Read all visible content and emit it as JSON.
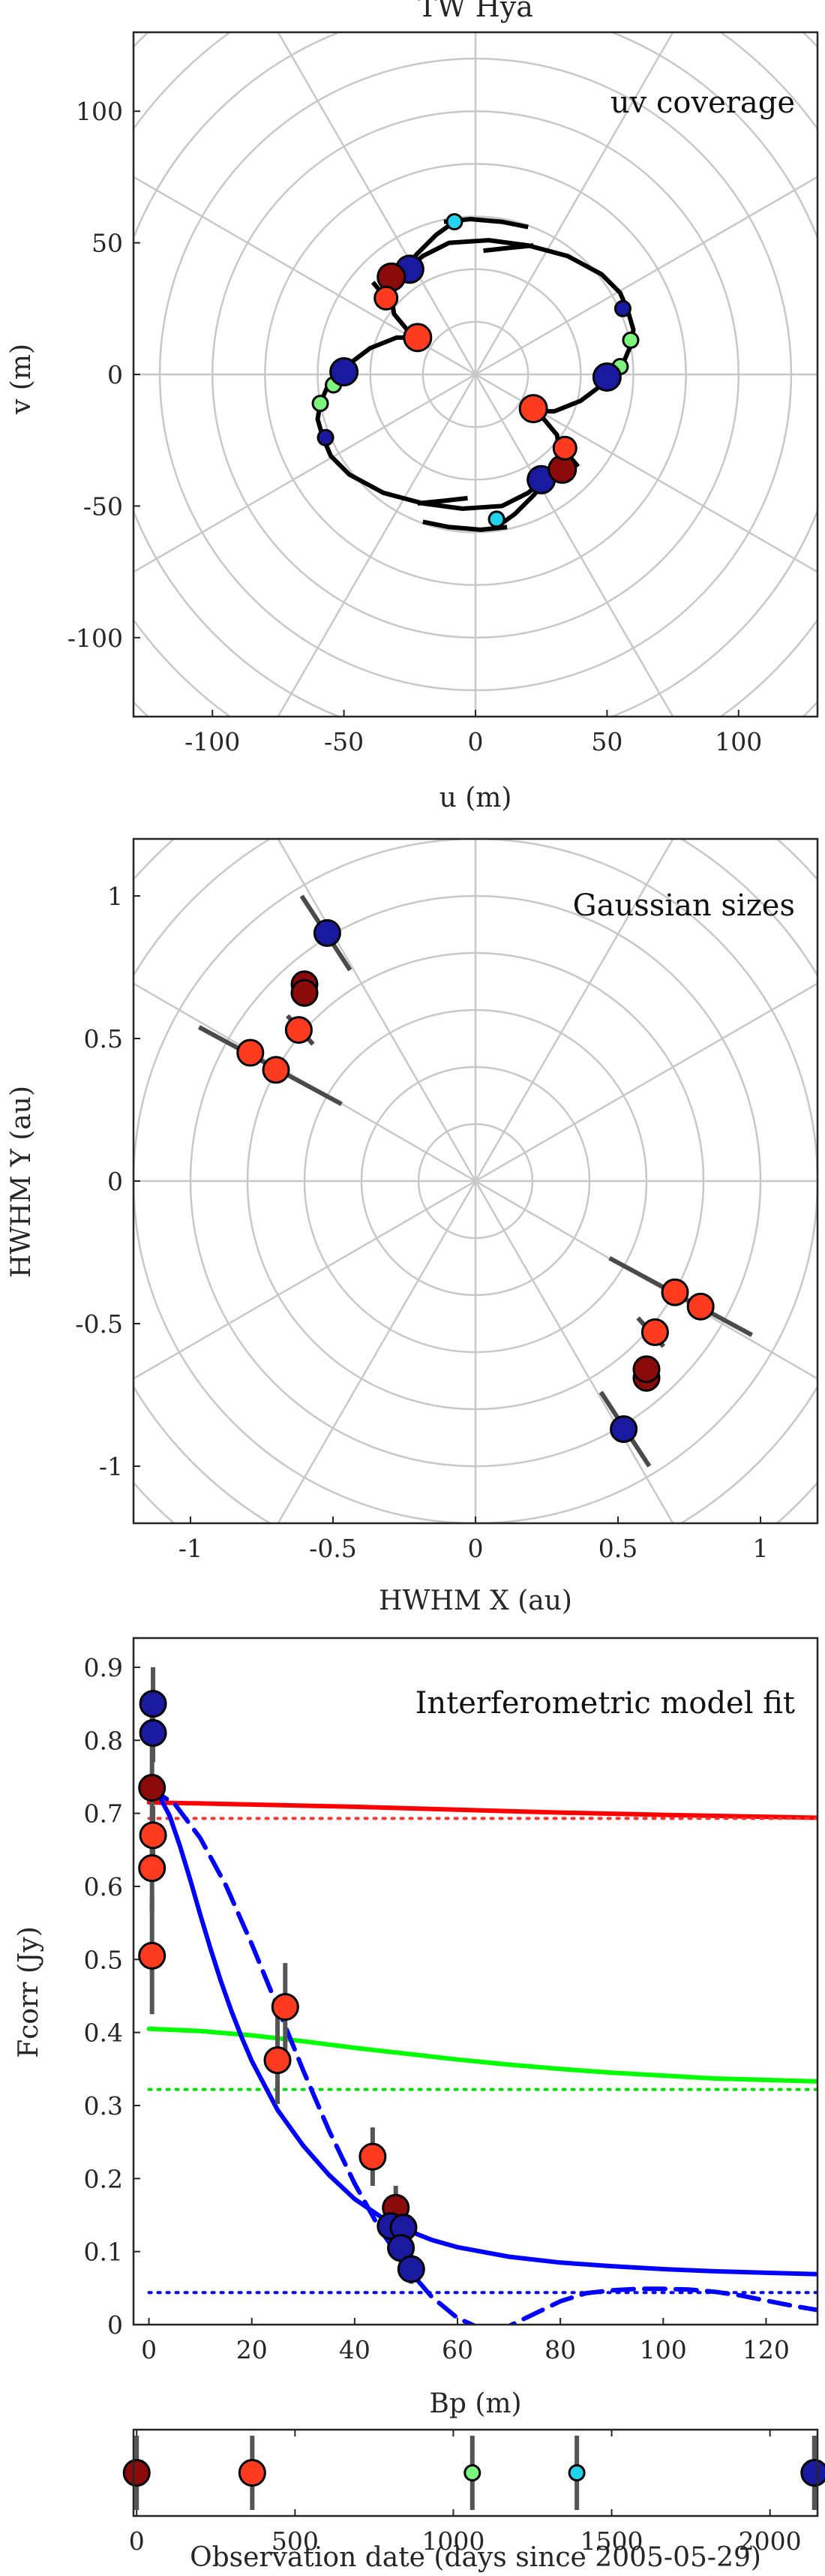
{
  "chart_data": [
    {
      "type": "scatter",
      "title": "TW Hya",
      "annotation": "uv coverage",
      "xlabel": "u (m)",
      "ylabel": "v (m)",
      "xlim": [
        -130,
        130
      ],
      "ylim": [
        -130,
        130
      ],
      "xticks": [
        "-100",
        "-50",
        "0",
        "50",
        "100"
      ],
      "yticks": [
        "-100",
        "-50",
        "0",
        "50",
        "100"
      ],
      "grid": "polar",
      "points": [
        {
          "u": -8,
          "v": 58,
          "color": "#22d3ee",
          "size": "small"
        },
        {
          "u": 8,
          "v": -55,
          "color": "#22d3ee",
          "size": "small"
        },
        {
          "u": -25,
          "v": 40,
          "color": "#1a1aa0",
          "size": "large"
        },
        {
          "u": 25,
          "v": -40,
          "color": "#1a1aa0",
          "size": "large"
        },
        {
          "u": -32,
          "v": 37,
          "color": "#8b0a0a",
          "size": "large"
        },
        {
          "u": 33,
          "v": -36,
          "color": "#8b0a0a",
          "size": "large"
        },
        {
          "u": -34,
          "v": 29,
          "color": "#ff3b1f",
          "size": "medium"
        },
        {
          "u": 34,
          "v": -28,
          "color": "#ff3b1f",
          "size": "medium"
        },
        {
          "u": -22,
          "v": 14,
          "color": "#ff3b1f",
          "size": "large"
        },
        {
          "u": 22,
          "v": -13,
          "color": "#ff3b1f",
          "size": "large"
        },
        {
          "u": 56,
          "v": 25,
          "color": "#1a1aa0",
          "size": "small"
        },
        {
          "u": -57,
          "v": -24,
          "color": "#1a1aa0",
          "size": "small"
        },
        {
          "u": 59,
          "v": 13,
          "color": "#7cf57c",
          "size": "small"
        },
        {
          "u": -59,
          "v": -11,
          "color": "#7cf57c",
          "size": "small"
        },
        {
          "u": 55,
          "v": 3,
          "color": "#7cf57c",
          "size": "small"
        },
        {
          "u": -54,
          "v": -4,
          "color": "#7cf57c",
          "size": "small"
        },
        {
          "u": 50,
          "v": -1,
          "color": "#1a1aa0",
          "size": "large"
        },
        {
          "u": -50,
          "v": 1,
          "color": "#1a1aa0",
          "size": "large"
        }
      ]
    },
    {
      "type": "scatter",
      "annotation": "Gaussian sizes",
      "xlabel": "HWHM X (au)",
      "ylabel": "HWHM Y (au)",
      "xlim": [
        -1.2,
        1.2
      ],
      "ylim": [
        -1.2,
        1.2
      ],
      "xticks": [
        "-1",
        "-0.5",
        "0",
        "0.5",
        "1"
      ],
      "yticks": [
        "-1",
        "-0.5",
        "0",
        "0.5",
        "1"
      ],
      "grid": "polar",
      "points": [
        {
          "x": -0.52,
          "y": 0.87,
          "color": "#1a1aa0"
        },
        {
          "x": 0.52,
          "y": -0.87,
          "color": "#1a1aa0"
        },
        {
          "x": -0.6,
          "y": 0.69,
          "color": "#8b0a0a"
        },
        {
          "x": -0.6,
          "y": 0.66,
          "color": "#8b0a0a"
        },
        {
          "x": 0.6,
          "y": -0.69,
          "color": "#8b0a0a"
        },
        {
          "x": 0.6,
          "y": -0.66,
          "color": "#8b0a0a"
        },
        {
          "x": -0.62,
          "y": 0.53,
          "color": "#ff3b1f"
        },
        {
          "x": 0.63,
          "y": -0.53,
          "color": "#ff3b1f"
        },
        {
          "x": -0.79,
          "y": 0.45,
          "color": "#ff3b1f"
        },
        {
          "x": 0.79,
          "y": -0.44,
          "color": "#ff3b1f"
        },
        {
          "x": -0.7,
          "y": 0.39,
          "color": "#ff3b1f"
        },
        {
          "x": 0.7,
          "y": -0.39,
          "color": "#ff3b1f"
        }
      ]
    },
    {
      "type": "line",
      "annotation": "Interferometric model fit",
      "xlabel": "Bp (m)",
      "ylabel": "Fcorr (Jy)",
      "xlim": [
        -3,
        130
      ],
      "ylim": [
        0,
        0.94
      ],
      "xticks": [
        "0",
        "20",
        "40",
        "60",
        "80",
        "100",
        "120"
      ],
      "yticks": [
        "0",
        "0.1",
        "0.2",
        "0.3",
        "0.4",
        "0.5",
        "0.6",
        "0.7",
        "0.8",
        "0.9"
      ],
      "points": [
        {
          "x": 0.8,
          "y": 0.85,
          "err": 0.05,
          "color": "#1a1aa0"
        },
        {
          "x": 0.8,
          "y": 0.81,
          "err": 0.04,
          "color": "#1a1aa0"
        },
        {
          "x": 0.6,
          "y": 0.735,
          "err": 0.12,
          "color": "#8b0a0a"
        },
        {
          "x": 0.8,
          "y": 0.67,
          "err": 0.04,
          "color": "#ff3b1f"
        },
        {
          "x": 0.6,
          "y": 0.625,
          "err": 0.06,
          "color": "#ff3b1f"
        },
        {
          "x": 0.6,
          "y": 0.505,
          "err": 0.08,
          "color": "#ff3b1f"
        },
        {
          "x": 26.5,
          "y": 0.435,
          "err": 0.06,
          "color": "#ff3b1f"
        },
        {
          "x": 25,
          "y": 0.362,
          "err": 0.06,
          "color": "#ff3b1f"
        },
        {
          "x": 43.5,
          "y": 0.23,
          "err": 0.04,
          "color": "#ff3b1f"
        },
        {
          "x": 48,
          "y": 0.16,
          "err": 0.03,
          "color": "#8b0a0a"
        },
        {
          "x": 47,
          "y": 0.135,
          "err": 0.03,
          "color": "#1a1aa0"
        },
        {
          "x": 49.5,
          "y": 0.133,
          "err": 0.03,
          "color": "#1a1aa0"
        },
        {
          "x": 49,
          "y": 0.105,
          "err": 0.02,
          "color": "#1a1aa0"
        },
        {
          "x": 51,
          "y": 0.076,
          "err": 0.02,
          "color": "#1a1aa0"
        }
      ],
      "series": [
        {
          "color": "#ff0000",
          "style": "solid",
          "x": [
            0,
            20,
            40,
            60,
            80,
            100,
            130
          ],
          "y": [
            0.715,
            0.712,
            0.709,
            0.705,
            0.701,
            0.698,
            0.694
          ]
        },
        {
          "color": "#ff3030",
          "style": "dotted",
          "x": [
            0,
            130
          ],
          "y": [
            0.693,
            0.693
          ]
        },
        {
          "color": "#00ff00",
          "style": "solid",
          "x": [
            0,
            10,
            20,
            30,
            40,
            50,
            60,
            70,
            80,
            90,
            100,
            110,
            120,
            130
          ],
          "y": [
            0.405,
            0.402,
            0.396,
            0.388,
            0.379,
            0.371,
            0.363,
            0.356,
            0.35,
            0.345,
            0.341,
            0.337,
            0.335,
            0.333
          ]
        },
        {
          "color": "#00e000",
          "style": "dotted",
          "x": [
            0,
            130
          ],
          "y": [
            0.322,
            0.322
          ]
        },
        {
          "color": "#0000ff",
          "style": "solid",
          "x": [
            0,
            2,
            4,
            6,
            8,
            10,
            12,
            14,
            16,
            18,
            20,
            25,
            30,
            35,
            40,
            45,
            50,
            55,
            60,
            70,
            80,
            90,
            100,
            110,
            120,
            130
          ],
          "y": [
            0.735,
            0.724,
            0.697,
            0.656,
            0.61,
            0.561,
            0.514,
            0.47,
            0.43,
            0.394,
            0.361,
            0.294,
            0.245,
            0.205,
            0.172,
            0.148,
            0.13,
            0.116,
            0.106,
            0.093,
            0.085,
            0.08,
            0.076,
            0.073,
            0.071,
            0.069
          ]
        },
        {
          "color": "#0000ff",
          "style": "dotted",
          "x": [
            0,
            130
          ],
          "y": [
            0.044,
            0.044
          ]
        },
        {
          "color": "#0000ff",
          "style": "dashed",
          "x": [
            0,
            5,
            10,
            15,
            20,
            25,
            30,
            35,
            40,
            45,
            50,
            55,
            60,
            65,
            70,
            75,
            80,
            85,
            90,
            95,
            100,
            105,
            110,
            115,
            120,
            125,
            130
          ],
          "y": [
            0.735,
            0.713,
            0.666,
            0.601,
            0.521,
            0.435,
            0.348,
            0.266,
            0.193,
            0.13,
            0.079,
            0.038,
            0.009,
            -0.007,
            -0.002,
            0.015,
            0.032,
            0.043,
            0.047,
            0.049,
            0.049,
            0.048,
            0.045,
            0.04,
            0.033,
            0.026,
            0.02
          ]
        }
      ]
    },
    {
      "type": "scatter",
      "xlabel": "Observation date (days since 2005-05-29)",
      "xlim": [
        -10,
        2150
      ],
      "xticks": [
        "0",
        "500",
        "1000",
        "1500",
        "2000"
      ],
      "points": [
        {
          "x": 0,
          "color": "#8b0a0a"
        },
        {
          "x": 365,
          "color": "#ff3b1f"
        },
        {
          "x": 1060,
          "color": "#7cf57c"
        },
        {
          "x": 1390,
          "color": "#22d3ee"
        },
        {
          "x": 2140,
          "color": "#1a1aa0"
        }
      ]
    }
  ]
}
